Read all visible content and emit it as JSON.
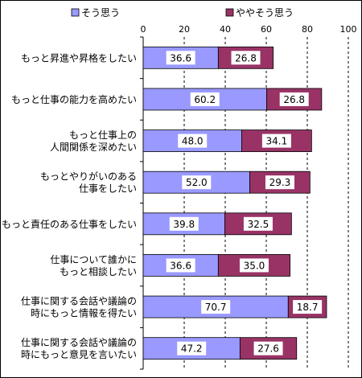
{
  "chart_data": {
    "type": "bar",
    "stacked": true,
    "orientation": "horizontal",
    "title": "",
    "xlabel": "",
    "ylabel": "",
    "xlim": [
      0,
      100
    ],
    "x_ticks": [
      "0",
      "20",
      "40",
      "60",
      "80",
      "100"
    ],
    "grid": true,
    "legend_position": "top",
    "categories": [
      "もっと昇進や昇格をしたい",
      "もっと仕事の能力を高めたい",
      "もっと仕事上の\n人間関係を深めたい",
      "もっとやりがいのある\n仕事をしたい",
      "もっと責任のある仕事をしたい",
      "仕事について誰かに\nもっと相談したい",
      "仕事に関する会話や議論の\n時にもっと情報を得たい",
      "仕事に関する会話や議論の\n時にもっと意見を言いたい"
    ],
    "series": [
      {
        "name": "そう思う",
        "color": "#9999ff",
        "values": [
          36.6,
          60.2,
          48.0,
          52.0,
          39.8,
          36.6,
          70.7,
          47.2
        ],
        "labels": [
          "36.6",
          "60.2",
          "48.0",
          "52.0",
          "39.8",
          "36.6",
          "70.7",
          "47.2"
        ]
      },
      {
        "name": "ややそう思う",
        "color": "#993366",
        "values": [
          26.8,
          26.8,
          34.1,
          29.3,
          32.5,
          35.0,
          18.7,
          27.6
        ],
        "labels": [
          "26.8",
          "26.8",
          "34.1",
          "29.3",
          "32.5",
          "35.0",
          "18.7",
          "27.6"
        ]
      }
    ]
  }
}
